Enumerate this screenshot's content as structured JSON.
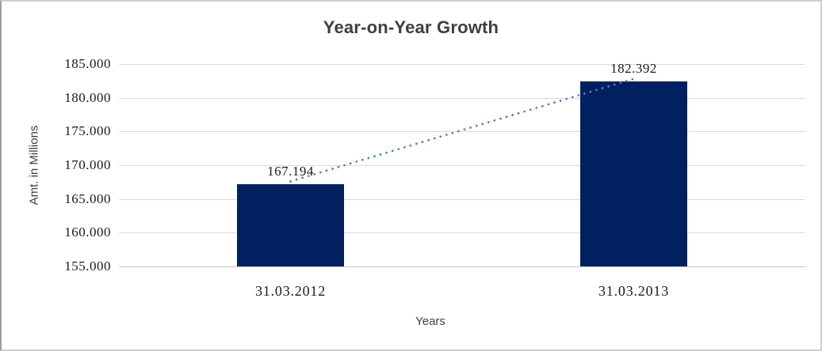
{
  "chart_data": {
    "type": "bar",
    "title": "Year-on-Year Growth",
    "xlabel": "Years",
    "ylabel": "Amt. in Millions",
    "categories": [
      "31.03.2012",
      "31.03.2013"
    ],
    "series": [
      {
        "name": "Amt. in Millions",
        "values": [
          167.194,
          182.392
        ]
      }
    ],
    "data_labels": [
      "167.194",
      "182.392"
    ],
    "y_ticks": [
      "185.000",
      "180.000",
      "175.000",
      "170.000",
      "165.000",
      "160.000",
      "155.000"
    ],
    "y_tick_values": [
      185,
      180,
      175,
      170,
      165,
      160,
      155
    ],
    "ylim": [
      155,
      185
    ],
    "grid": true,
    "legend": "none",
    "trendline": {
      "style": "dotted",
      "from_value": 167.194,
      "to_value": 182.392
    },
    "colors": {
      "bar": "#002060",
      "trendline": "#4F81BD",
      "gridline": "#D9D9D9",
      "axis_line": "#C6C6C6",
      "title": "#3F3F3F",
      "label": "#1A1A1A"
    }
  }
}
